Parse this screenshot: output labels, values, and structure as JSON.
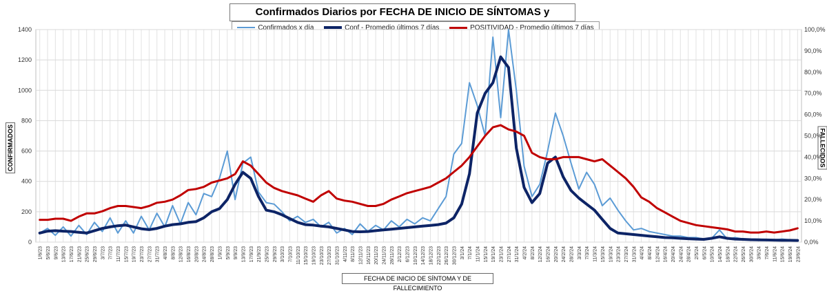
{
  "chart_data": {
    "type": "line",
    "title": "Confirmados  Diarios  por FECHA DE INICIO DE SÍNTOMAS y POSITIVIDAD",
    "xlabel": "FECHA DE INICIO  DE SÍNTOMA  Y DE FALLECIMIENTO",
    "ylabel": "CONFIRMADOS",
    "y2label": "FALLECIDOS",
    "ylim": [
      0,
      1400
    ],
    "y2lim": [
      0,
      100
    ],
    "yticks": [
      "0",
      "200",
      "400",
      "600",
      "800",
      "1000",
      "1200",
      "1400"
    ],
    "y2ticks": [
      "0,0%",
      "10,0%",
      "20,0%",
      "30,0%",
      "40,0%",
      "50,0%",
      "60,0%",
      "70,0%",
      "80,0%",
      "90,0%",
      "100,0%"
    ],
    "x": [
      "1/6/23",
      "5/6/23",
      "9/6/23",
      "13/6/23",
      "17/6/23",
      "21/6/23",
      "25/6/23",
      "29/6/23",
      "3/7/23",
      "7/7/23",
      "11/7/23",
      "15/7/23",
      "19/7/23",
      "23/7/23",
      "27/7/23",
      "31/7/23",
      "4/8/23",
      "8/8/23",
      "12/8/23",
      "16/8/23",
      "20/8/23",
      "24/8/23",
      "28/8/23",
      "1/9/23",
      "5/9/23",
      "9/9/23",
      "13/9/23",
      "17/9/23",
      "21/9/23",
      "25/9/23",
      "29/9/23",
      "3/10/23",
      "7/10/23",
      "11/10/23",
      "15/10/23",
      "19/10/23",
      "23/10/23",
      "27/10/23",
      "31/10/23",
      "4/11/23",
      "8/11/23",
      "12/11/23",
      "16/11/23",
      "20/11/23",
      "24/11/23",
      "28/11/23",
      "2/12/23",
      "6/12/23",
      "10/12/23",
      "14/12/23",
      "18/12/23",
      "22/12/23",
      "26/12/23",
      "30/12/23",
      "3/1/24",
      "7/1/24",
      "11/1/24",
      "15/1/24",
      "19/1/24",
      "23/1/24",
      "27/1/24",
      "31/1/24",
      "4/2/24",
      "8/2/24",
      "12/2/24",
      "16/2/24",
      "20/2/24",
      "24/2/24",
      "28/2/24",
      "3/3/24",
      "7/3/24",
      "11/3/24",
      "15/3/24",
      "19/3/24",
      "23/3/24",
      "27/3/24",
      "31/3/24",
      "4/4/24",
      "8/4/24",
      "12/4/24",
      "16/4/24",
      "20/4/24",
      "24/4/24",
      "28/4/24",
      "2/5/24",
      "6/5/24",
      "10/5/24",
      "14/5/24",
      "18/5/24",
      "22/5/24",
      "26/5/24",
      "30/5/24",
      "3/6/24",
      "7/6/24",
      "11/6/24",
      "15/6/24",
      "19/6/24",
      "23/6/24"
    ],
    "legend_position": "top",
    "grid": true,
    "series": [
      {
        "name": "Confirmados x día",
        "axis": "left",
        "color": "#5b9bd5",
        "values": [
          60,
          90,
          45,
          100,
          40,
          110,
          50,
          130,
          70,
          160,
          60,
          140,
          60,
          170,
          80,
          190,
          100,
          240,
          120,
          260,
          180,
          320,
          300,
          420,
          600,
          280,
          520,
          560,
          330,
          260,
          250,
          200,
          140,
          170,
          130,
          150,
          100,
          130,
          60,
          90,
          50,
          120,
          70,
          110,
          80,
          140,
          100,
          150,
          120,
          160,
          140,
          220,
          300,
          580,
          650,
          1050,
          900,
          700,
          1350,
          820,
          1400,
          1000,
          500,
          300,
          380,
          600,
          850,
          700,
          520,
          350,
          460,
          380,
          240,
          290,
          210,
          140,
          80,
          90,
          70,
          60,
          50,
          40,
          40,
          30,
          30,
          20,
          25,
          80,
          20,
          30,
          20,
          20,
          20,
          15,
          15,
          20,
          15,
          15
        ]
      },
      {
        "name": "Conf - Promedio últimos 7 días",
        "axis": "left",
        "color": "#0d2466",
        "values": [
          60,
          72,
          75,
          72,
          70,
          65,
          60,
          75,
          90,
          100,
          108,
          112,
          100,
          88,
          82,
          90,
          105,
          115,
          120,
          130,
          135,
          160,
          200,
          220,
          280,
          380,
          460,
          420,
          300,
          210,
          200,
          180,
          155,
          130,
          115,
          112,
          105,
          100,
          90,
          80,
          70,
          68,
          70,
          75,
          80,
          85,
          90,
          95,
          100,
          105,
          110,
          115,
          125,
          160,
          250,
          450,
          850,
          980,
          1050,
          1220,
          1150,
          620,
          360,
          260,
          320,
          520,
          560,
          430,
          340,
          290,
          250,
          210,
          150,
          90,
          60,
          55,
          50,
          45,
          40,
          35,
          30,
          28,
          25,
          22,
          20,
          18,
          25,
          35,
          25,
          20,
          18,
          16,
          15,
          14,
          13,
          12,
          12,
          11
        ]
      },
      {
        "name": "POSITIVIDAD - Promedio últimos 7 días",
        "axis": "right",
        "color": "#c00000",
        "values": [
          10.5,
          10.5,
          11,
          11,
          10,
          12,
          13.5,
          13.5,
          14.5,
          16,
          17,
          17,
          16.5,
          16,
          17,
          18.5,
          19,
          20,
          22,
          24.5,
          25,
          26,
          28,
          29,
          30,
          32,
          38,
          36,
          32,
          28,
          25.5,
          24,
          23,
          22,
          20.5,
          19,
          22,
          24,
          20.5,
          19.5,
          19,
          18,
          17,
          17,
          18,
          20,
          21.5,
          23,
          24,
          25,
          26,
          28,
          30,
          33,
          36,
          40,
          45,
          50,
          54,
          55,
          53,
          52,
          50,
          42,
          40,
          39,
          39,
          40,
          40,
          40,
          39,
          38,
          39,
          36,
          33,
          30,
          26,
          21,
          19,
          16,
          14,
          12,
          10,
          9,
          8,
          7.5,
          7,
          6.5,
          6,
          5,
          5,
          4.5,
          4.5,
          5,
          4.5,
          5,
          5.5,
          6.5
        ]
      }
    ]
  }
}
